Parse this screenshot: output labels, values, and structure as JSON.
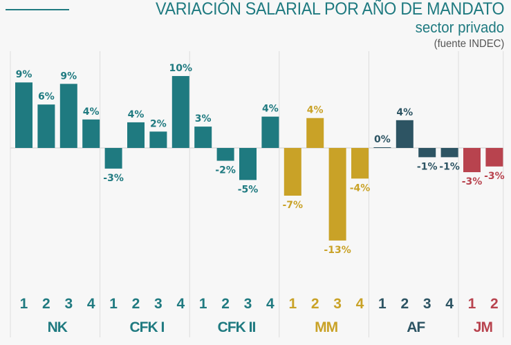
{
  "header": {
    "title": "VARIACIÓN SALARIAL POR AÑO DE MANDATO",
    "subtitle": "sector privado",
    "source": "(fuente INDEC)"
  },
  "chart_data": {
    "type": "bar",
    "title": "VARIACIÓN SALARIAL POR AÑO DE MANDATO",
    "subtitle": "sector privado",
    "source": "(fuente INDEC)",
    "xlabel": "",
    "ylabel": "",
    "ylim": [
      -14,
      11
    ],
    "grid": true,
    "legend": "none",
    "unit": "%",
    "groups": [
      {
        "name": "NK",
        "color": "#1f7a80",
        "years": [
          "1",
          "2",
          "3",
          "4"
        ],
        "values": [
          9.2,
          6.1,
          9.0,
          4.0
        ],
        "labels": [
          "9%",
          "6%",
          "9%",
          "4%"
        ]
      },
      {
        "name": "CFK I",
        "color": "#1f7a80",
        "years": [
          "1",
          "2",
          "3",
          "4"
        ],
        "values": [
          -2.9,
          3.6,
          2.3,
          10.1
        ],
        "labels": [
          "-3%",
          "4%",
          "2%",
          "10%"
        ]
      },
      {
        "name": "CFK II",
        "color": "#1f7a80",
        "years": [
          "1",
          "2",
          "3",
          "4"
        ],
        "values": [
          3.0,
          -1.8,
          -4.5,
          4.4
        ],
        "labels": [
          "3%",
          "-2%",
          "-5%",
          "4%"
        ]
      },
      {
        "name": "MM",
        "color": "#c9a227",
        "years": [
          "1",
          "2",
          "3",
          "4"
        ],
        "values": [
          -6.7,
          4.2,
          -13.0,
          -4.3
        ],
        "labels": [
          "-7%",
          "4%",
          "-13%",
          "-4%"
        ]
      },
      {
        "name": "AF",
        "color": "#2d5463",
        "years": [
          "1",
          "2",
          "3",
          "4"
        ],
        "values": [
          0.1,
          3.9,
          -1.3,
          -1.3
        ],
        "labels": [
          "0%",
          "4%",
          "-1%",
          "-1%"
        ]
      },
      {
        "name": "JM",
        "color": "#b8434e",
        "years": [
          "1",
          "2"
        ],
        "values": [
          -3.4,
          -2.6
        ],
        "labels": [
          "-3%",
          "-3%"
        ]
      }
    ]
  }
}
